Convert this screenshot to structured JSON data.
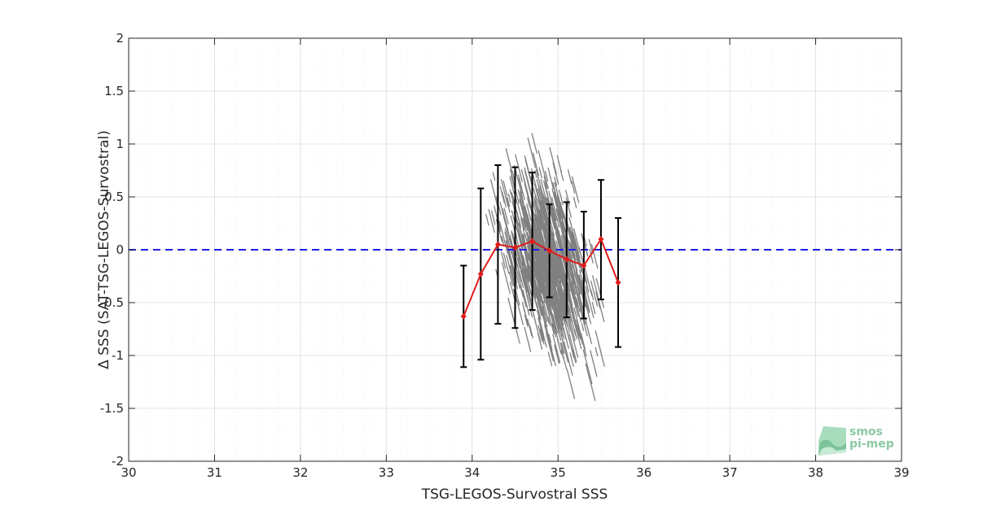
{
  "chart_data": {
    "type": "scatter",
    "xlabel": "TSG-LEGOS-Survostral SSS",
    "ylabel": "Δ SSS (SAT-TSG-LEGOS-Survostral)",
    "xlim": [
      30,
      39
    ],
    "ylim": [
      -2,
      2
    ],
    "xticks": [
      "30",
      "31",
      "32",
      "33",
      "34",
      "35",
      "36",
      "37",
      "38",
      "39"
    ],
    "yticks": [
      "-2",
      "-1.5",
      "-1",
      "-0.5",
      "0",
      "0.5",
      "1",
      "1.5",
      "2"
    ],
    "grid": true,
    "minor_grid": true,
    "reference_line": {
      "y": 0,
      "style": "dashed",
      "color": "#1f1fe6"
    },
    "binned_mean": {
      "color": "#e01b1b",
      "x": [
        33.9,
        34.1,
        34.3,
        34.5,
        34.7,
        34.9,
        35.1,
        35.3,
        35.5,
        35.7
      ],
      "mean": [
        -0.63,
        -0.23,
        0.05,
        0.02,
        0.08,
        -0.01,
        -0.09,
        -0.15,
        0.1,
        -0.31
      ],
      "lower": [
        -1.11,
        -1.04,
        -0.7,
        -0.74,
        -0.57,
        -0.45,
        -0.64,
        -0.65,
        -0.47,
        -0.92
      ],
      "upper": [
        -0.15,
        0.58,
        0.8,
        0.78,
        0.73,
        0.43,
        0.45,
        0.36,
        0.66,
        0.3
      ]
    },
    "scatter_color": "#808080"
  },
  "logo": {
    "line1": "smos",
    "line2": "pi-mep"
  }
}
